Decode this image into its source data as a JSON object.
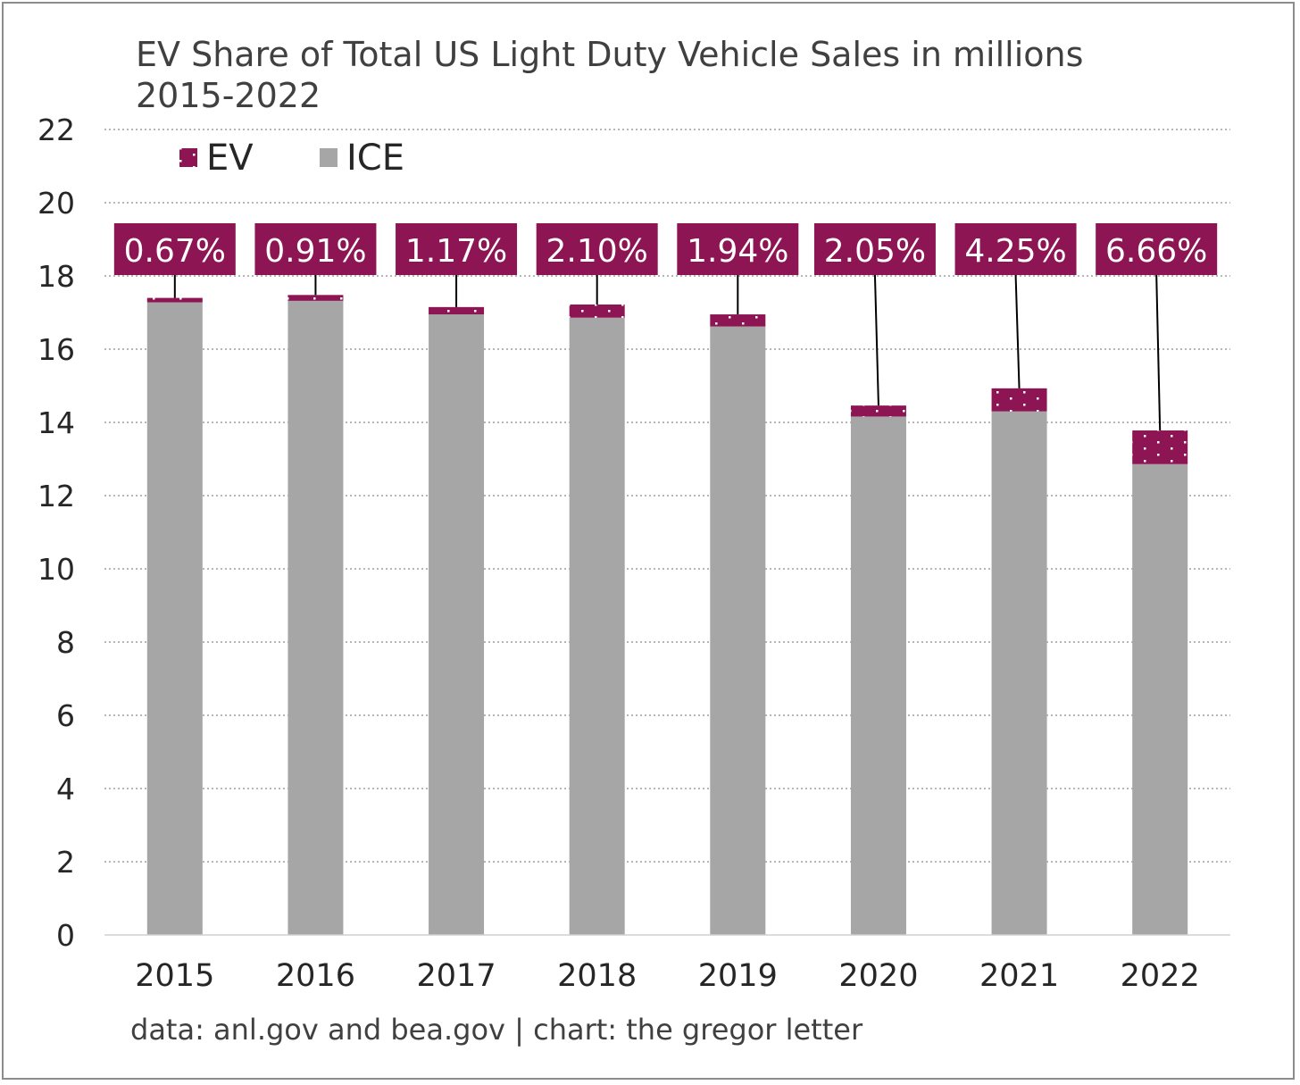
{
  "chart_data": {
    "type": "bar",
    "stacked": true,
    "title": "EV Share of Total US Light Duty Vehicle Sales in millions 2015-2022",
    "source": "data: anl.gov and bea.gov | chart: the gregor letter",
    "categories": [
      "2015",
      "2016",
      "2017",
      "2018",
      "2019",
      "2020",
      "2021",
      "2022"
    ],
    "series": [
      {
        "name": "EV",
        "color": "#8e1553",
        "pattern": "dotted",
        "values": [
          0.12,
          0.16,
          0.2,
          0.36,
          0.33,
          0.3,
          0.63,
          0.92
        ]
      },
      {
        "name": "ICE",
        "color": "#a6a6a6",
        "values": [
          17.28,
          17.32,
          16.95,
          16.86,
          16.62,
          14.16,
          14.3,
          12.86
        ]
      }
    ],
    "ev_share_labels": [
      "0.67%",
      "0.91%",
      "1.17%",
      "2.10%",
      "1.94%",
      "2.05%",
      "4.25%",
      "6.66%"
    ],
    "ylim": [
      0,
      22
    ],
    "yticks": [
      0,
      2,
      4,
      6,
      8,
      10,
      12,
      14,
      16,
      18,
      20,
      22
    ],
    "grid": true,
    "grid_style": "dotted",
    "legend_position": "top-left",
    "label_box_color": "#8e1553"
  }
}
